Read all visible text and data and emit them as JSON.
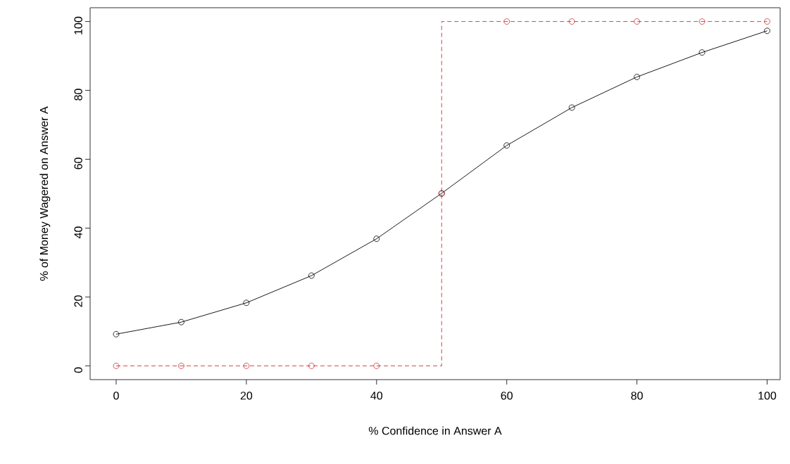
{
  "chart_data": {
    "type": "line",
    "xlabel": "% Confidence in Answer A",
    "ylabel": "% of Money Wagered on Answer A",
    "xlim": [
      -4,
      102
    ],
    "ylim": [
      -4,
      104
    ],
    "xticks": [
      0,
      20,
      40,
      60,
      80,
      100
    ],
    "yticks": [
      0,
      20,
      40,
      60,
      80,
      100
    ],
    "grid": false,
    "series": [
      {
        "color": "#000000",
        "marker": "circle",
        "line_style": "solid",
        "x": [
          0,
          10,
          20,
          30,
          40,
          50,
          60,
          70,
          80,
          90,
          100
        ],
        "values": [
          9.2,
          12.7,
          18.3,
          26.2,
          36.9,
          50.1,
          64.0,
          75.0,
          83.9,
          91.0,
          97.3
        ]
      },
      {
        "type": "line",
        "color": "#cc3333",
        "marker": "none",
        "line_style": "dashed",
        "x": [
          0,
          50,
          50,
          100
        ],
        "values": [
          0,
          0,
          100,
          100
        ]
      },
      {
        "type": "scatter",
        "color": "#cc3333",
        "marker": "circle",
        "x": [
          0,
          10,
          20,
          30,
          40,
          50,
          60,
          70,
          80,
          90,
          100
        ],
        "values": [
          0,
          0,
          0,
          0,
          0,
          50,
          100,
          100,
          100,
          100,
          100
        ]
      }
    ]
  }
}
